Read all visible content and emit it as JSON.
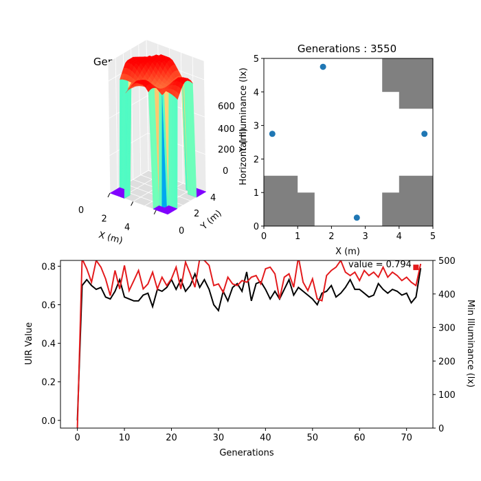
{
  "chart_data": [
    {
      "type": "surface3d",
      "title": "Generations : 3550",
      "xlabel": "X (m)",
      "ylabel": "Y (m)",
      "zlabel": "",
      "x_ticks": [
        "0",
        "2",
        "4"
      ],
      "y_ticks": [
        "0",
        "2",
        "4"
      ],
      "z_ticks": [
        "0",
        "200",
        "400",
        "600"
      ],
      "xlim": [
        0,
        5
      ],
      "ylim": [
        0,
        5
      ],
      "zlim": [
        0,
        700
      ],
      "colormap": "rainbow",
      "surface": {
        "peak_illuminance": 650,
        "typical_illuminance": 560,
        "zero_regions": [
          "lower-left corner",
          "lower-right corner",
          "upper-right corner",
          "upper-left corner"
        ]
      }
    },
    {
      "type": "scatter",
      "title": "Generations : 3550",
      "xlabel": "X (m)",
      "ylabel": "Horizontal Illuminance (lx)",
      "ylabel_overlap": "Y (m)",
      "xlim": [
        0,
        5
      ],
      "ylim": [
        0,
        5
      ],
      "x_ticks": [
        "0",
        "1",
        "2",
        "3",
        "4",
        "5"
      ],
      "y_ticks": [
        "0",
        "1",
        "2",
        "3",
        "4",
        "5"
      ],
      "points": [
        {
          "x": 0.25,
          "y": 2.75
        },
        {
          "x": 1.75,
          "y": 4.75
        },
        {
          "x": 2.75,
          "y": 0.25
        },
        {
          "x": 4.75,
          "y": 2.75
        }
      ],
      "point_color": "#1f77b4",
      "obstacle_color": "#808080",
      "obstacles": [
        {
          "polygon": [
            [
              0,
              0
            ],
            [
              1.5,
              0
            ],
            [
              1.5,
              1
            ],
            [
              1,
              1
            ],
            [
              1,
              1.5
            ],
            [
              0,
              1.5
            ]
          ]
        },
        {
          "polygon": [
            [
              3.5,
              0
            ],
            [
              5,
              0
            ],
            [
              5,
              1.5
            ],
            [
              4,
              1.5
            ],
            [
              4,
              1
            ],
            [
              3.5,
              1
            ]
          ]
        },
        {
          "polygon": [
            [
              3.5,
              5
            ],
            [
              5,
              5
            ],
            [
              5,
              3.5
            ],
            [
              4,
              3.5
            ],
            [
              4,
              4
            ],
            [
              3.5,
              4
            ]
          ]
        }
      ]
    },
    {
      "type": "line",
      "xlabel": "Generations",
      "ylabel": "UIR Value",
      "y2label": "Min Illuminance (lx)",
      "xlim": [
        -3.6,
        75.6
      ],
      "ylim": [
        -0.04,
        0.83
      ],
      "y2lim": [
        0,
        500
      ],
      "x_ticks": [
        "0",
        "10",
        "20",
        "30",
        "40",
        "50",
        "60",
        "70"
      ],
      "y_ticks": [
        "0.0",
        "0.2",
        "0.4",
        "0.6",
        "0.8"
      ],
      "y2_ticks": [
        "0",
        "100",
        "200",
        "300",
        "400",
        "500"
      ],
      "annotation": "value = 0.794",
      "series": [
        {
          "axis": "left",
          "color": "#000000",
          "values": [
            0.0,
            0.7,
            0.73,
            0.7,
            0.68,
            0.69,
            0.64,
            0.63,
            0.67,
            0.73,
            0.64,
            0.63,
            0.62,
            0.62,
            0.65,
            0.66,
            0.59,
            0.68,
            0.67,
            0.69,
            0.73,
            0.68,
            0.73,
            0.67,
            0.7,
            0.76,
            0.69,
            0.73,
            0.68,
            0.6,
            0.57,
            0.67,
            0.62,
            0.69,
            0.71,
            0.67,
            0.77,
            0.62,
            0.71,
            0.72,
            0.68,
            0.63,
            0.67,
            0.63,
            0.68,
            0.73,
            0.65,
            0.69,
            0.67,
            0.65,
            0.63,
            0.6,
            0.66,
            0.67,
            0.7,
            0.64,
            0.66,
            0.69,
            0.73,
            0.68,
            0.68,
            0.66,
            0.64,
            0.65,
            0.71,
            0.68,
            0.66,
            0.68,
            0.67,
            0.65,
            0.66,
            0.61,
            0.64,
            0.79
          ]
        },
        {
          "axis": "right",
          "color": "#e31a1c",
          "values": [
            0,
            505,
            475,
            435,
            500,
            480,
            445,
            395,
            470,
            415,
            485,
            410,
            440,
            470,
            415,
            430,
            465,
            415,
            450,
            425,
            445,
            480,
            415,
            495,
            460,
            420,
            505,
            500,
            485,
            425,
            430,
            405,
            450,
            430,
            425,
            440,
            435,
            450,
            455,
            430,
            475,
            480,
            460,
            385,
            450,
            460,
            420,
            510,
            435,
            410,
            445,
            385,
            380,
            455,
            470,
            480,
            500,
            465,
            455,
            465,
            440,
            470,
            455,
            465,
            450,
            480,
            450,
            465,
            455,
            440,
            450,
            435,
            425,
            490
          ]
        }
      ],
      "end_marker": {
        "x": 72,
        "y": 0.794,
        "color": "#e31a1c"
      }
    }
  ]
}
